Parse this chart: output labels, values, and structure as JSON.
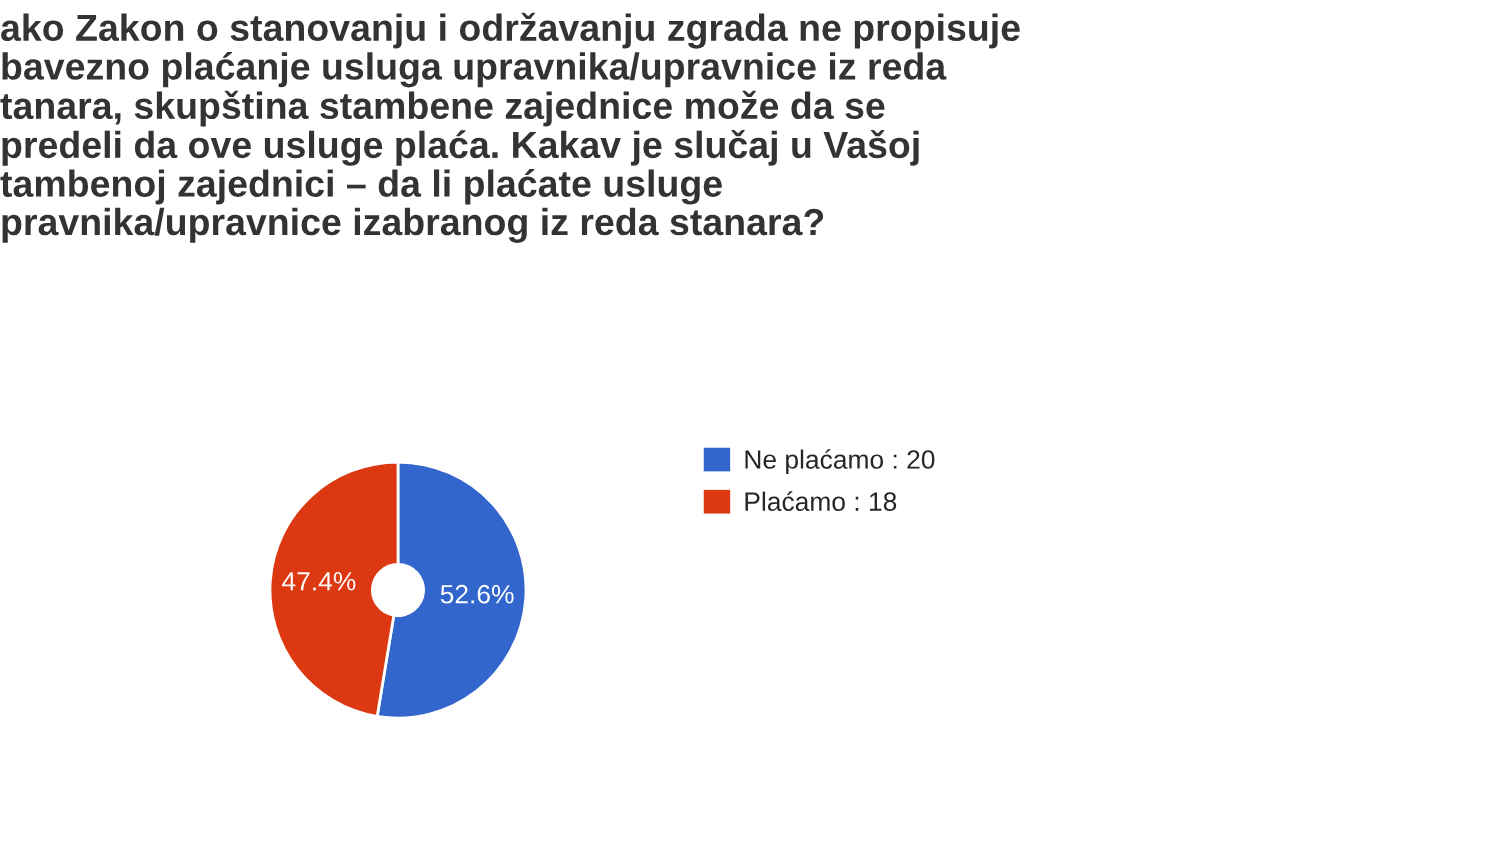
{
  "chart_data": {
    "type": "donut",
    "title": "ako Zakon o stanovanju i održavanju zgrada ne propisuje\nbavezno plaćanje usluga upravnika/upravnice iz reda\ntanara, skupština stambene zajednice može da se\npredeli da ove usluge plaća. Kakav je slučaj u Vašoj\ntambenoj zajednici – da li plaćate usluge\npravnika/upravnice izabranog iz reda stanara?",
    "categories": [
      "Ne plaćamo : 20",
      "Plaćamo : 18"
    ],
    "values": [
      52.6,
      47.4
    ],
    "colors": [
      "#3366cc",
      "#dc3912"
    ],
    "value_labels": [
      "52.6%",
      "47.4%"
    ],
    "legend": "right"
  }
}
